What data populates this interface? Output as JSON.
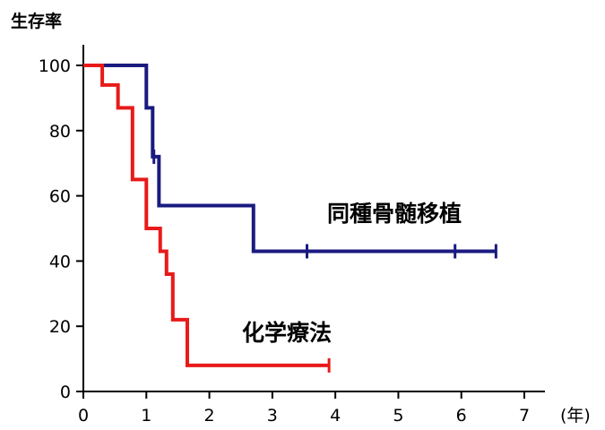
{
  "chart_data": {
    "type": "line",
    "step": true,
    "ylabel": "生存率",
    "xunit": "(年)",
    "xlim": [
      0,
      7
    ],
    "ylim": [
      0,
      100
    ],
    "xticks": [
      "0",
      "1",
      "2",
      "3",
      "4",
      "5",
      "6",
      "7"
    ],
    "yticks": [
      "0",
      "20",
      "40",
      "60",
      "80",
      "100"
    ],
    "grid": false,
    "series": [
      {
        "name": "同種骨髄移植",
        "color": "#1a1a80",
        "x": [
          0,
          1.0,
          1.05,
          1.1,
          1.2,
          2.7,
          6.55
        ],
        "y": [
          100,
          100,
          87,
          87,
          72,
          57,
          43
        ],
        "points": [
          [
            0,
            100
          ],
          [
            1.0,
            100
          ],
          [
            1.0,
            87
          ],
          [
            1.05,
            87
          ],
          [
            1.05,
            87
          ],
          [
            1.1,
            87
          ],
          [
            1.1,
            72
          ],
          [
            1.2,
            72
          ],
          [
            1.2,
            57
          ],
          [
            2.7,
            57
          ],
          [
            2.7,
            43
          ],
          [
            6.55,
            43
          ]
        ],
        "censor_x": [
          1.12,
          3.55,
          5.9,
          6.55
        ]
      },
      {
        "name": "化学療法",
        "color": "#e81a1a",
        "points": [
          [
            0,
            100
          ],
          [
            0.3,
            100
          ],
          [
            0.3,
            94
          ],
          [
            0.55,
            94
          ],
          [
            0.55,
            87
          ],
          [
            0.78,
            87
          ],
          [
            0.78,
            65
          ],
          [
            1.0,
            65
          ],
          [
            1.0,
            50
          ],
          [
            1.22,
            50
          ],
          [
            1.22,
            43
          ],
          [
            1.32,
            43
          ],
          [
            1.32,
            36
          ],
          [
            1.42,
            36
          ],
          [
            1.42,
            22
          ],
          [
            1.65,
            22
          ],
          [
            1.65,
            8
          ],
          [
            3.9,
            8
          ]
        ],
        "censor_x": [
          3.9
        ]
      }
    ]
  }
}
